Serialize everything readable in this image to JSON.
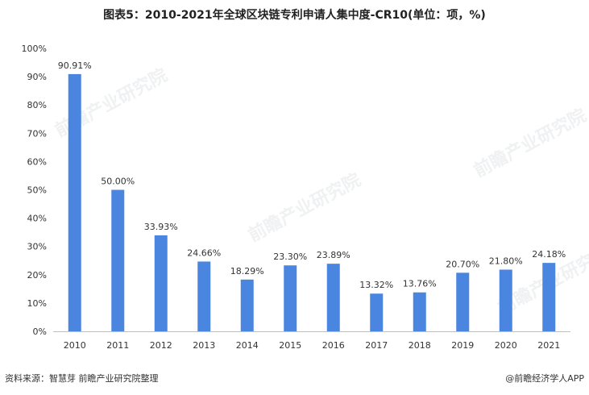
{
  "title": "图表5：2010-2021年全球区块链专利申请人集中度-CR10(单位：项，%)",
  "source": "资料来源：智慧芽 前瞻产业研究院整理",
  "brand": "@前瞻经济学人APP",
  "watermark": "前瞻产业研究院",
  "colors": {
    "bar": "#4a86e0",
    "axis": "#bfbfbf",
    "text": "#333333"
  },
  "chart_data": {
    "type": "bar",
    "categories": [
      "2010",
      "2011",
      "2012",
      "2013",
      "2014",
      "2015",
      "2016",
      "2017",
      "2018",
      "2019",
      "2020",
      "2021"
    ],
    "values": [
      90.91,
      50.0,
      33.93,
      24.66,
      18.29,
      23.3,
      23.89,
      13.32,
      13.76,
      20.7,
      21.8,
      24.18
    ],
    "data_labels": [
      "90.91%",
      "50.00%",
      "33.93%",
      "24.66%",
      "18.29%",
      "23.30%",
      "23.89%",
      "13.32%",
      "13.76%",
      "20.70%",
      "21.80%",
      "24.18%"
    ],
    "y_ticks": [
      "0%",
      "10%",
      "20%",
      "30%",
      "40%",
      "50%",
      "60%",
      "70%",
      "80%",
      "90%",
      "100%"
    ],
    "ylim": [
      0,
      100
    ],
    "grid": false,
    "legend": "none"
  }
}
